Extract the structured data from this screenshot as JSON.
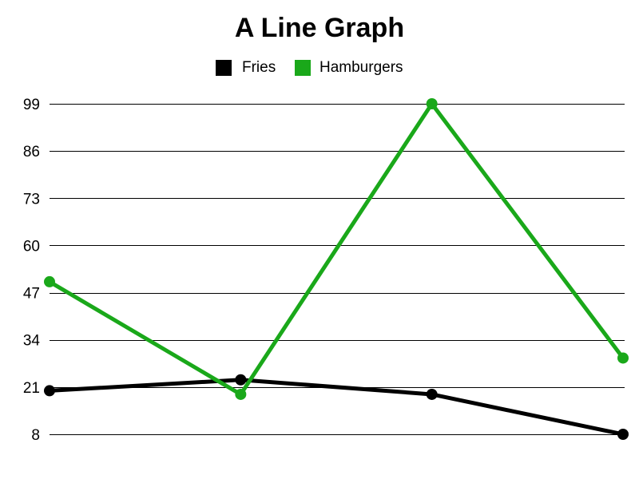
{
  "chart_data": {
    "type": "line",
    "title": "A Line Graph",
    "xlabel": "",
    "ylabel": "",
    "categories": [
      "",
      "",
      "",
      ""
    ],
    "yticks": [
      8,
      21,
      34,
      47,
      60,
      73,
      86,
      99
    ],
    "ylim": [
      8,
      99
    ],
    "grid": true,
    "legend_position": "top-center",
    "series": [
      {
        "name": "Fries",
        "color": "#000000",
        "values": [
          20,
          23,
          19,
          8
        ]
      },
      {
        "name": "Hamburgers",
        "color": "#1aa81a",
        "values": [
          50,
          19,
          99,
          29
        ]
      }
    ]
  }
}
